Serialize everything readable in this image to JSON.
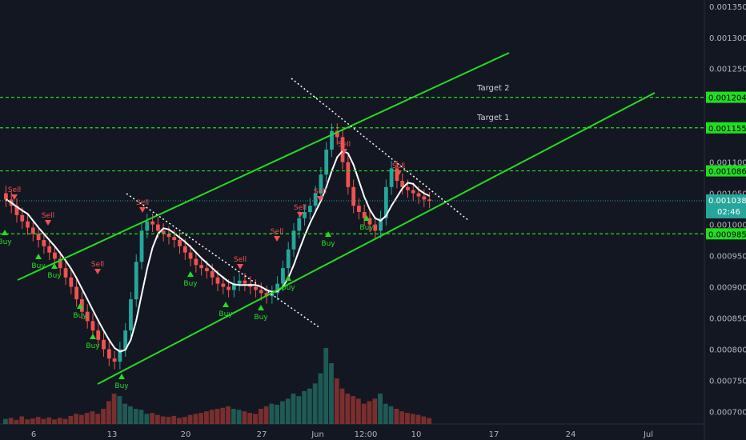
{
  "chart_data": {
    "type": "candlestick",
    "price_axis": {
      "ticks": [
        "0.001350",
        "0.001300",
        "0.001250",
        "0.001100",
        "0.001050",
        "0.001000",
        "0.000950",
        "0.000900",
        "0.000850",
        "0.000800",
        "0.000750",
        "0.000700"
      ],
      "ylim": [
        0.00068,
        0.00136
      ]
    },
    "time_axis": {
      "ticks": [
        "6",
        "13",
        "20",
        "27",
        "Jun",
        "12:00",
        "10",
        "17",
        "24",
        "Jul"
      ]
    },
    "levels": [
      {
        "value": 0.001204,
        "label": "0.001204",
        "color": "#22dd22"
      },
      {
        "value": 0.001155,
        "label": "0.001155",
        "color": "#22dd22"
      },
      {
        "value": 0.001086,
        "label": "0.001086",
        "color": "#22dd22"
      },
      {
        "value": 0.000985,
        "label": "0.000985",
        "color": "#22dd22"
      }
    ],
    "last_price": {
      "value": 0.001038,
      "label": "0.001038",
      "countdown": "02:46",
      "color": "#26a69a"
    },
    "targets": [
      {
        "label": "Target 2"
      },
      {
        "label": "Target 1"
      }
    ],
    "signals": {
      "buy_label": "Buy",
      "sell_label": "Sell"
    },
    "candles_close": [
      0.00104,
      0.00103,
      0.001015,
      0.001005,
      0.000995,
      0.000985,
      0.000975,
      0.000965,
      0.000955,
      0.000945,
      0.00093,
      0.000915,
      0.0009,
      0.00088,
      0.00086,
      0.000845,
      0.00083,
      0.000815,
      0.0008,
      0.000785,
      0.00078,
      0.0008,
      0.00083,
      0.00088,
      0.00094,
      0.00099,
      0.001005,
      0.001,
      0.00099,
      0.000985,
      0.00098,
      0.000975,
      0.000965,
      0.000955,
      0.000945,
      0.000935,
      0.00093,
      0.000925,
      0.000915,
      0.000905,
      0.0009,
      0.000895,
      0.000905,
      0.00091,
      0.000905,
      0.0009,
      0.000895,
      0.00089,
      0.000885,
      0.00089,
      0.000905,
      0.00093,
      0.00096,
      0.00099,
      0.00101,
      0.00102,
      0.00103,
      0.00105,
      0.00108,
      0.00112,
      0.00115,
      0.00114,
      0.0011,
      0.00106,
      0.00103,
      0.00102,
      0.00101,
      0.001,
      0.00099,
      0.00101,
      0.00106,
      0.00109,
      0.00107,
      0.00106,
      0.001055,
      0.00105,
      0.001045,
      0.00104,
      0.001038
    ],
    "volume": [
      10,
      12,
      8,
      15,
      9,
      11,
      14,
      10,
      13,
      9,
      12,
      10,
      16,
      20,
      18,
      22,
      25,
      20,
      30,
      45,
      60,
      55,
      40,
      35,
      30,
      28,
      20,
      22,
      18,
      15,
      14,
      16,
      12,
      14,
      18,
      20,
      22,
      25,
      28,
      30,
      32,
      35,
      30,
      28,
      25,
      22,
      20,
      30,
      35,
      40,
      38,
      45,
      50,
      60,
      55,
      65,
      70,
      80,
      100,
      150,
      120,
      90,
      70,
      60,
      55,
      50,
      40,
      45,
      50,
      60,
      40,
      35,
      30,
      25,
      22,
      20,
      18,
      15,
      12
    ]
  }
}
